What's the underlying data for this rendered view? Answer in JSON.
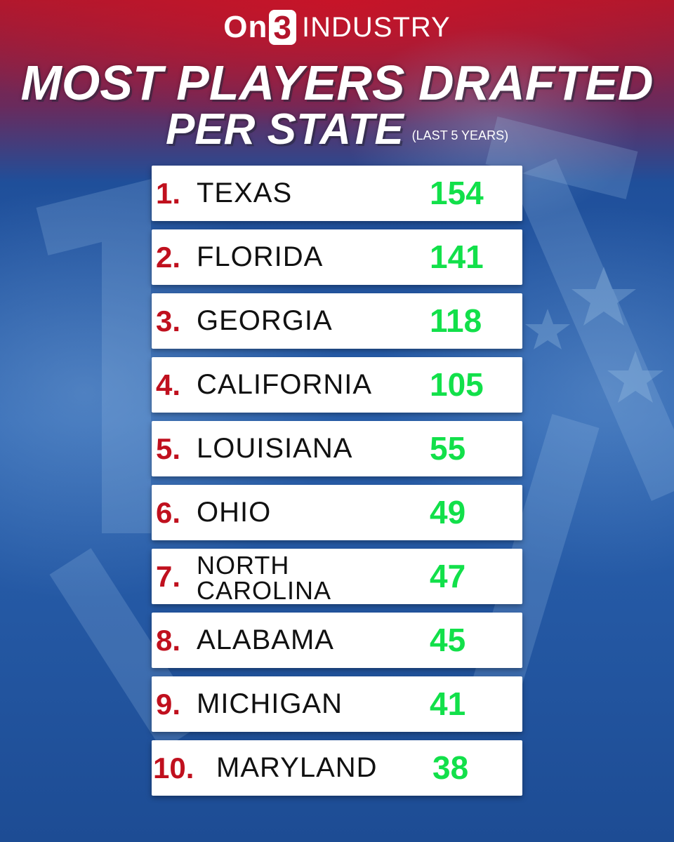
{
  "brand": {
    "on": "On",
    "three": "3",
    "industry": "INDUSTRY"
  },
  "title": {
    "line1": "MOST PLAYERS DRAFTED",
    "line2": "PER STATE",
    "note": "(LAST 5 YEARS)"
  },
  "colors": {
    "rank": "#c0101e",
    "count": "#12e04a",
    "background_top": "#a8192f",
    "background": "#2a62b0"
  },
  "rankings": [
    {
      "rank": "1.",
      "state": "TEXAS",
      "count": "154"
    },
    {
      "rank": "2.",
      "state": "FLORIDA",
      "count": "141"
    },
    {
      "rank": "3.",
      "state": "GEORGIA",
      "count": "118"
    },
    {
      "rank": "4.",
      "state": "CALIFORNIA",
      "count": "105"
    },
    {
      "rank": "5.",
      "state": "LOUISIANA",
      "count": "55"
    },
    {
      "rank": "6.",
      "state": "OHIO",
      "count": "49"
    },
    {
      "rank": "7.",
      "state": "NORTH CAROLINA",
      "count": "47"
    },
    {
      "rank": "8.",
      "state": "ALABAMA",
      "count": "45"
    },
    {
      "rank": "9.",
      "state": "MICHIGAN",
      "count": "41"
    },
    {
      "rank": "10.",
      "state": "MARYLAND",
      "count": "38"
    }
  ]
}
